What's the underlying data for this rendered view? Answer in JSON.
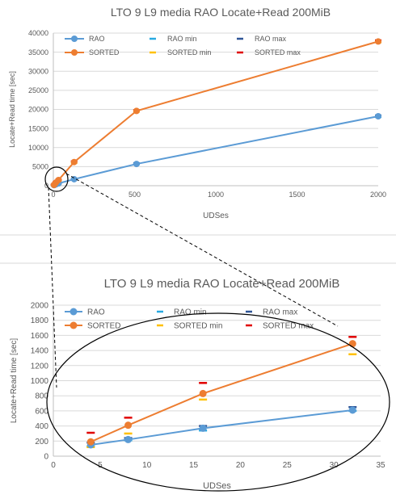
{
  "colors": {
    "rao": "#5b9bd5",
    "sorted": "#ed7d31",
    "rao_min": "#27a9e1",
    "rao_max": "#2f5597",
    "sorted_min": "#ffc000",
    "sorted_max": "#e00000",
    "grid": "#d9d9d9",
    "zoom_outline": "#000000"
  },
  "chart_data": [
    {
      "type": "line",
      "title": "LTO 9 L9 media RAO Locate+Read 200MiB",
      "xlabel": "UDSes",
      "ylabel": "Locate+Read time [sec]",
      "xlim": [
        0,
        2000
      ],
      "ylim": [
        0,
        40000
      ],
      "x_ticks": [
        0,
        500,
        1000,
        1500,
        2000
      ],
      "y_ticks": [
        0,
        5000,
        10000,
        15000,
        20000,
        25000,
        30000,
        35000,
        40000
      ],
      "grid": "horizontal",
      "legend": "top",
      "legend_entries": [
        "RAO",
        "RAO min",
        "RAO max",
        "SORTED",
        "SORTED min",
        "SORTED max"
      ],
      "series": [
        {
          "name": "RAO",
          "x": [
            4,
            8,
            16,
            32,
            128,
            512,
            2000
          ],
          "y": [
            150,
            220,
            370,
            610,
            1700,
            5700,
            18200
          ]
        },
        {
          "name": "SORTED",
          "x": [
            4,
            8,
            16,
            32,
            128,
            512,
            2000
          ],
          "y": [
            190,
            410,
            830,
            1490,
            6200,
            19600,
            37800
          ]
        },
        {
          "name": "RAO min",
          "marker": "dash",
          "x": [
            4,
            8,
            16,
            32,
            128,
            512,
            2000
          ],
          "y": [
            130,
            210,
            340,
            600,
            1600,
            5600,
            18000
          ]
        },
        {
          "name": "RAO max",
          "marker": "dash",
          "x": [
            4,
            8,
            16,
            32,
            128,
            512,
            2000
          ],
          "y": [
            180,
            240,
            400,
            650,
            1800,
            5900,
            18400
          ]
        },
        {
          "name": "SORTED min",
          "marker": "dash",
          "x": [
            4,
            8,
            16,
            32,
            128,
            512,
            2000
          ],
          "y": [
            120,
            300,
            750,
            1350,
            6000,
            19400,
            37600
          ]
        },
        {
          "name": "SORTED max",
          "marker": "dash",
          "x": [
            4,
            8,
            16,
            32,
            128,
            512,
            2000
          ],
          "y": [
            310,
            510,
            970,
            1580,
            6400,
            19800,
            38100
          ]
        }
      ]
    },
    {
      "type": "line",
      "title": "LTO 9 L9 media RAO Locate+Read 200MiB",
      "xlabel": "UDSes",
      "ylabel": "Locate+Read time [sec]",
      "xlim": [
        0,
        35
      ],
      "ylim": [
        0,
        2000
      ],
      "x_ticks": [
        0,
        5,
        10,
        15,
        20,
        25,
        30,
        35
      ],
      "y_ticks": [
        0,
        200,
        400,
        600,
        800,
        1000,
        1200,
        1400,
        1600,
        1800,
        2000
      ],
      "grid": "horizontal",
      "legend": "top",
      "legend_entries": [
        "RAO",
        "RAO min",
        "RAO max",
        "SORTED",
        "SORTED min",
        "SORTED max"
      ],
      "series": [
        {
          "name": "RAO",
          "x": [
            4,
            8,
            16,
            32
          ],
          "y": [
            150,
            220,
            370,
            610
          ]
        },
        {
          "name": "SORTED",
          "x": [
            4,
            8,
            16,
            32
          ],
          "y": [
            190,
            410,
            830,
            1490
          ]
        },
        {
          "name": "RAO min",
          "marker": "dash",
          "x": [
            4,
            8,
            16,
            32
          ],
          "y": [
            130,
            210,
            340,
            600
          ]
        },
        {
          "name": "RAO max",
          "marker": "dash",
          "x": [
            4,
            8,
            16,
            32
          ],
          "y": [
            180,
            240,
            400,
            650
          ]
        },
        {
          "name": "SORTED min",
          "marker": "dash",
          "x": [
            4,
            8,
            16,
            32
          ],
          "y": [
            120,
            300,
            750,
            1350
          ]
        },
        {
          "name": "SORTED max",
          "marker": "dash",
          "x": [
            4,
            8,
            16,
            32
          ],
          "y": [
            310,
            510,
            970,
            1580
          ]
        }
      ]
    }
  ]
}
